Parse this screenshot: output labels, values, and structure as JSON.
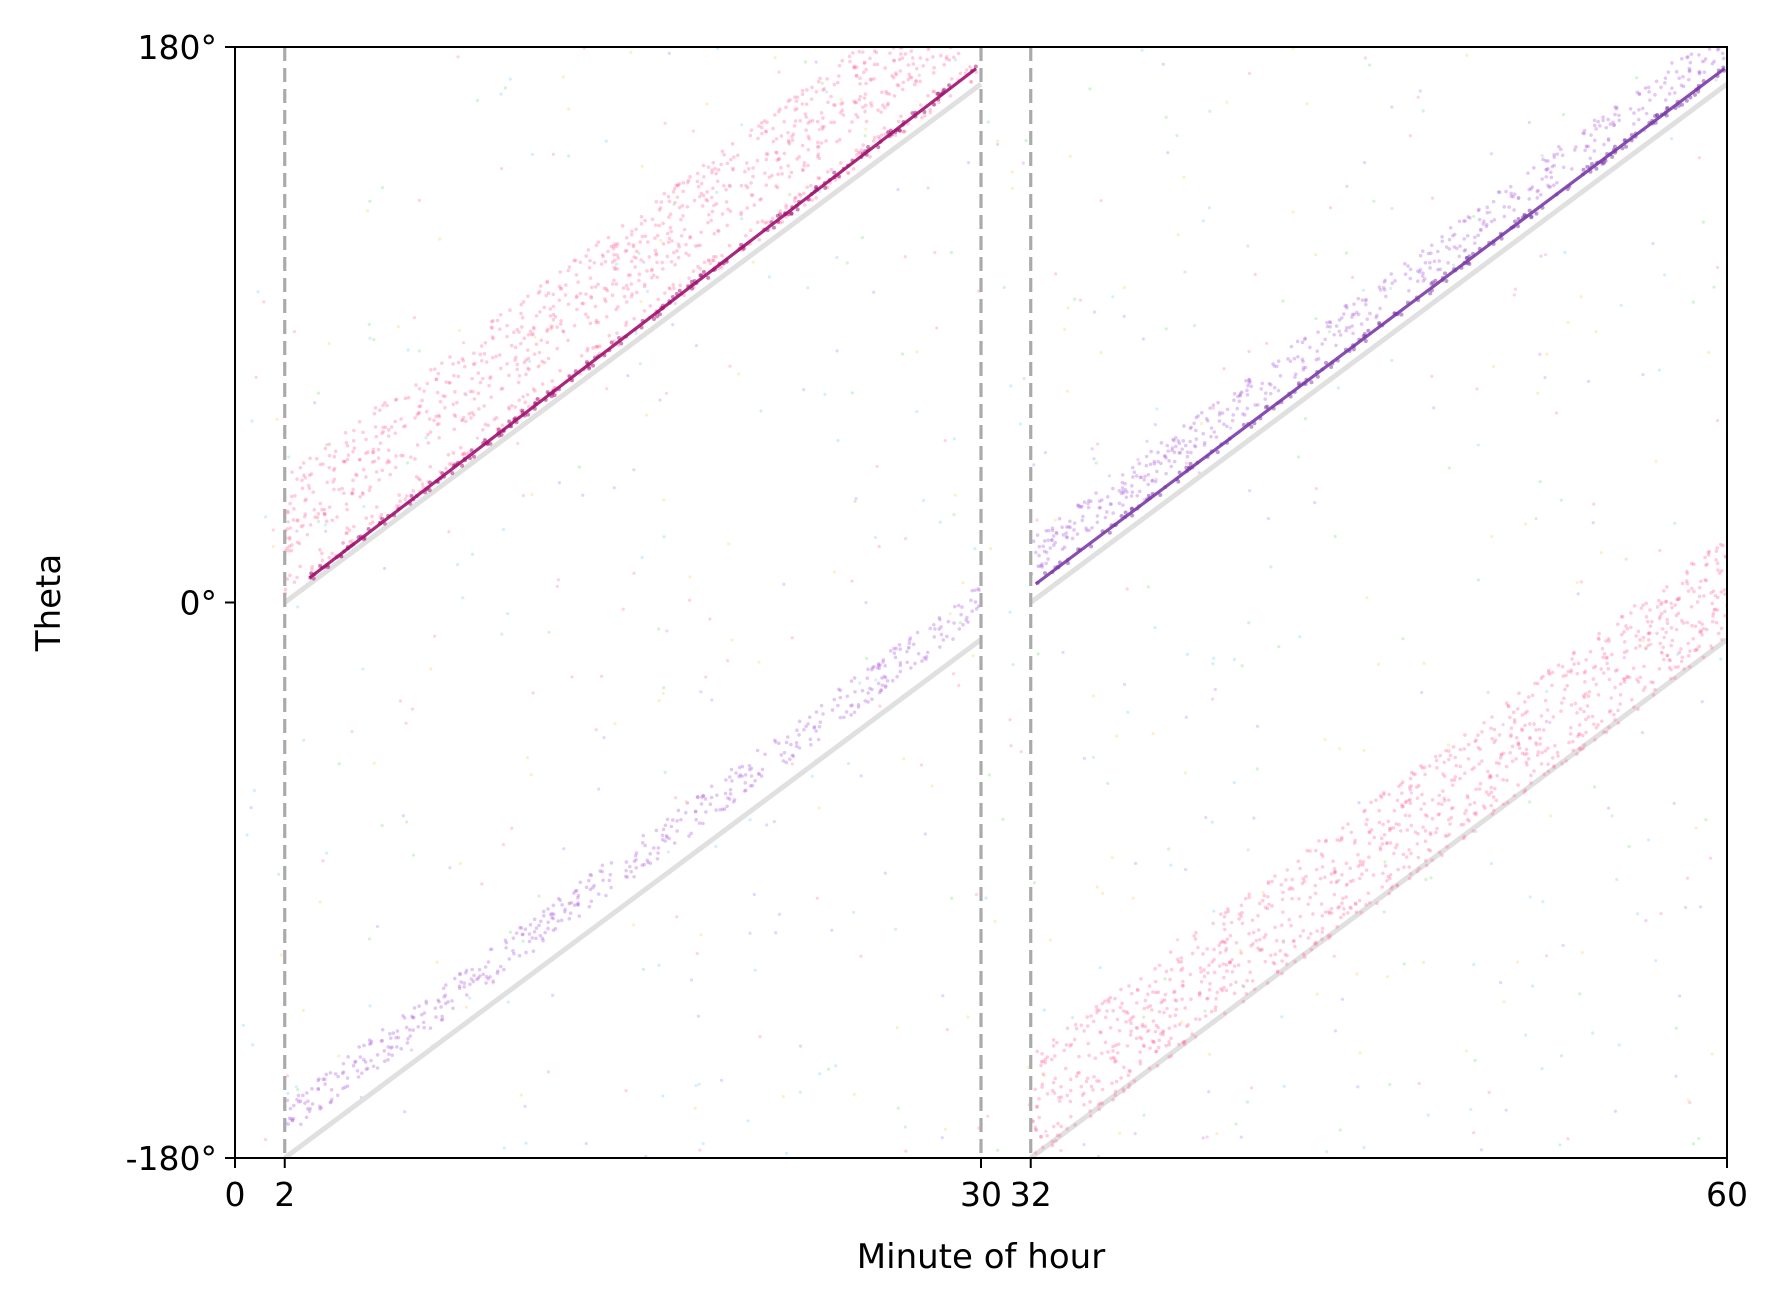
{
  "chart_data": {
    "type": "scatter",
    "title": "",
    "xlabel": "Minute of hour",
    "ylabel": "Theta",
    "xlim": [
      0,
      60
    ],
    "ylim": [
      -180,
      180
    ],
    "xticks": [
      0,
      2,
      30,
      32,
      60
    ],
    "yticks": [
      -180,
      0,
      180
    ],
    "xtick_labels": [
      "0",
      "2",
      "30",
      "32",
      "60"
    ],
    "ytick_labels": [
      "-180°",
      "0°",
      "180°"
    ],
    "grid": false,
    "vlines": {
      "x": [
        2,
        30,
        32
      ],
      "style": "dashed",
      "color": "#aaaaaa"
    },
    "reference_lines": {
      "color": "#e0e0e0",
      "segments": [
        {
          "x": [
            2,
            30
          ],
          "y": [
            0,
            168
          ]
        },
        {
          "x": [
            2,
            30
          ],
          "y": [
            -180,
            -12
          ]
        },
        {
          "x": [
            32,
            60
          ],
          "y": [
            0,
            168
          ]
        },
        {
          "x": [
            32,
            60
          ],
          "y": [
            -180,
            -12
          ]
        }
      ]
    },
    "series": [
      {
        "type": "line",
        "color": "#a0106e",
        "x": [
          3,
          29.8
        ],
        "y": [
          8,
          173
        ]
      },
      {
        "type": "line",
        "color": "#7a3aa8",
        "x": [
          32.2,
          59.9
        ],
        "y": [
          6,
          173
        ]
      },
      {
        "type": "band",
        "color": "#ff6fa0",
        "x": [
          2,
          30
        ],
        "y": [
          12,
          180
        ],
        "offsets": [
          -8,
          -4,
          4,
          8,
          12,
          16,
          20,
          24,
          28
        ]
      },
      {
        "type": "band",
        "color": "#b060e0",
        "x": [
          2,
          30
        ],
        "y": [
          -172,
          -4
        ],
        "offsets": [
          0,
          3,
          6,
          9
        ]
      },
      {
        "type": "band",
        "color": "#ff6fa0",
        "x": [
          32,
          60
        ],
        "y": [
          -172,
          -4
        ],
        "offsets": [
          -8,
          -4,
          0,
          4,
          8,
          12,
          16,
          20,
          24
        ]
      },
      {
        "type": "band",
        "color": "#b060e0",
        "x": [
          32,
          60
        ],
        "y": [
          10,
          178
        ],
        "offsets": [
          0,
          3,
          6,
          9
        ]
      }
    ],
    "background_noise": {
      "colors": [
        "#ff80b0",
        "#c080ff",
        "#80e080",
        "#80d0ff",
        "#ffd060"
      ]
    },
    "legend": "none"
  }
}
